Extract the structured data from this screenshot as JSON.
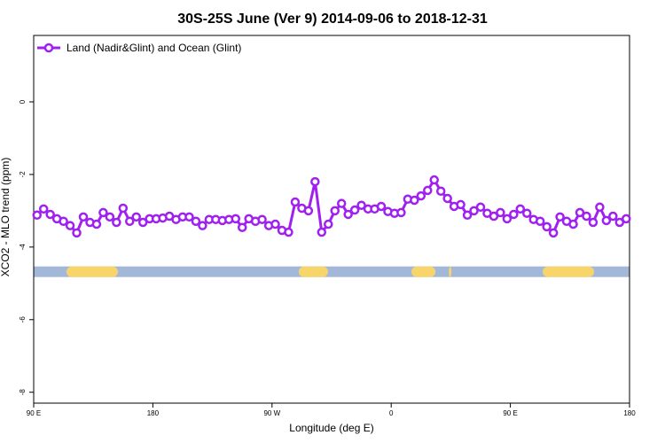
{
  "chart_data": {
    "type": "line",
    "title": "30S-25S June (Ver 9)   2014-09-06 to 2018-12-31",
    "xlabel": "Longitude (deg E)",
    "ylabel": "XCO2 - MLO trend (ppm)",
    "xlim": [
      90,
      540
    ],
    "ylim": [
      -8.3,
      1.83
    ],
    "xticks": [
      {
        "value": 90,
        "label": "90 E"
      },
      180,
      {
        "value": 270,
        "label": "90 W"
      },
      {
        "value": 360,
        "label": "0"
      },
      {
        "value": 450,
        "label": "90 E"
      },
      {
        "value": 540,
        "label": "180"
      }
    ],
    "yticks": [
      0,
      -2,
      -4,
      -6,
      -8
    ],
    "legend": "top-left",
    "x": [
      92.5,
      97.5,
      102.5,
      107.5,
      112.5,
      117.5,
      122.5,
      127.5,
      132.5,
      137.5,
      142.5,
      147.5,
      152.5,
      157.5,
      162.5,
      167.5,
      172.5,
      177.5,
      182.5,
      187.5,
      192.5,
      197.5,
      202.5,
      207.5,
      212.5,
      217.5,
      222.5,
      227.5,
      232.5,
      237.5,
      242.5,
      247.5,
      252.5,
      257.5,
      262.5,
      267.5,
      272.5,
      277.5,
      282.5,
      287.5,
      292.5,
      297.5,
      302.5,
      307.5,
      312.5,
      317.5,
      322.5,
      327.5,
      332.5,
      337.5,
      342.5,
      347.5,
      352.5,
      357.5,
      362.5,
      367.5,
      372.5,
      377.5,
      382.5,
      387.5,
      392.5,
      397.5,
      402.5,
      407.5,
      412.5,
      417.5,
      422.5,
      427.5,
      432.5,
      437.5,
      442.5,
      447.5,
      452.5,
      457.5,
      462.5,
      467.5,
      472.5,
      477.5,
      482.5,
      487.5,
      492.5,
      497.5,
      502.5,
      507.5,
      512.5,
      517.5,
      522.5,
      527.5,
      532.5,
      537.5
    ],
    "series": [
      {
        "name": "Land (Nadir&Glint) and Ocean (Glint)",
        "color": "#a020f0",
        "values": [
          -3.12,
          -2.95,
          -3.1,
          -3.22,
          -3.29,
          -3.41,
          -3.61,
          -3.17,
          -3.32,
          -3.37,
          -3.05,
          -3.17,
          -3.32,
          -2.93,
          -3.29,
          -3.17,
          -3.32,
          -3.22,
          -3.22,
          -3.2,
          -3.15,
          -3.24,
          -3.17,
          -3.17,
          -3.29,
          -3.41,
          -3.24,
          -3.24,
          -3.27,
          -3.24,
          -3.22,
          -3.46,
          -3.22,
          -3.29,
          -3.24,
          -3.41,
          -3.37,
          -3.54,
          -3.59,
          -2.76,
          -2.93,
          -3.0,
          -2.2,
          -3.59,
          -3.37,
          -3.0,
          -2.8,
          -3.1,
          -2.98,
          -2.85,
          -2.95,
          -2.95,
          -2.88,
          -3.02,
          -3.07,
          -3.05,
          -2.68,
          -2.71,
          -2.59,
          -2.44,
          -2.15,
          -2.46,
          -2.66,
          -2.88,
          -2.83,
          -3.12,
          -3.0,
          -2.9,
          -3.07,
          -3.15,
          -3.05,
          -3.22,
          -3.1,
          -2.95,
          -3.07,
          -3.24,
          -3.29,
          -3.44,
          -3.61,
          -3.17,
          -3.29,
          -3.37,
          -3.05,
          -3.15,
          -3.32,
          -2.9,
          -3.27,
          -3.15,
          -3.32,
          -3.22
        ]
      }
    ],
    "strip_y": -4.68,
    "ocean_color": "#a3b8d8",
    "land_color": "#f8d56b",
    "land_lon": [
      [
        114.8,
        153.6
      ],
      [
        290.2,
        312.3
      ],
      [
        375.3,
        393.4
      ],
      [
        403.5,
        405.5
      ],
      [
        474.4,
        513.2
      ]
    ]
  }
}
